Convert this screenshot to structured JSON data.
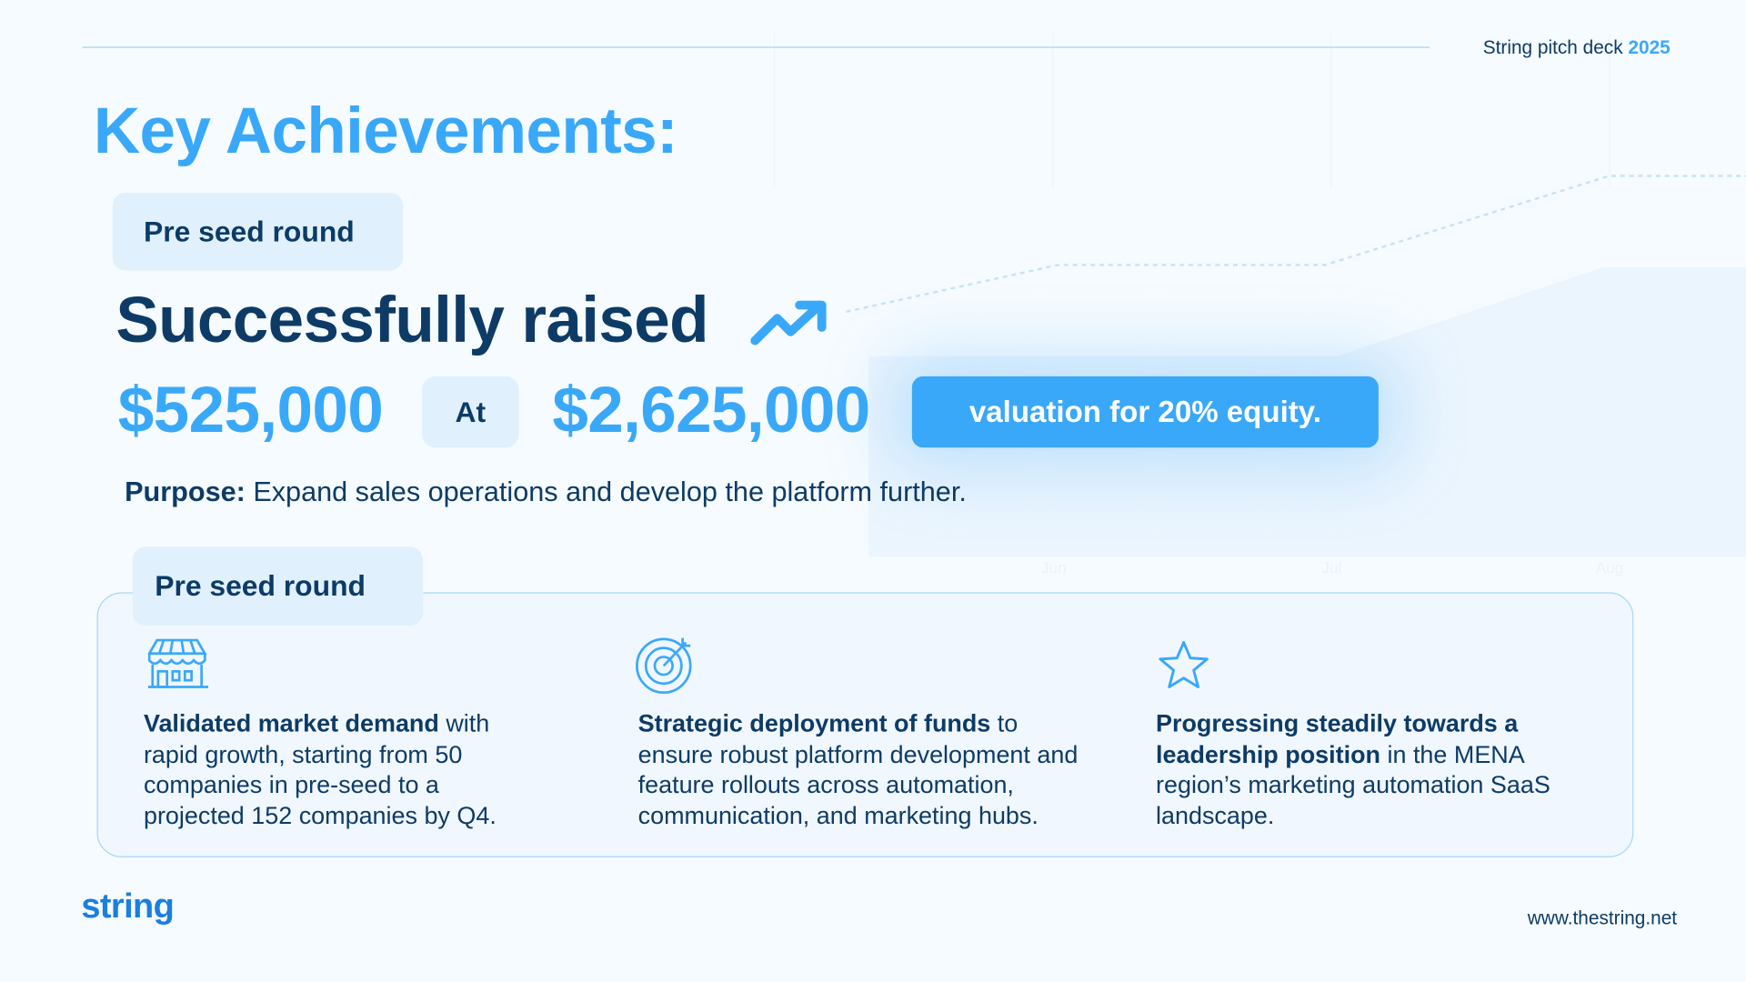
{
  "header": {
    "deck_label": "String pitch deck",
    "deck_year": "2025"
  },
  "title": "Key Achievements:",
  "round_badge": "Pre seed round",
  "headline": "Successfully raised",
  "headline_icon": "trending-up-icon",
  "raise": {
    "amount": "$525,000",
    "at_label": "At",
    "valuation": "$2,625,000",
    "valuation_note": "valuation for 20% equity."
  },
  "purpose": {
    "label": "Purpose:",
    "text": " Expand sales operations and develop the platform further."
  },
  "background_months": [
    "Jun",
    "Jul",
    "Aug"
  ],
  "section_badge": "Pre seed round",
  "features": [
    {
      "icon": "storefront-icon",
      "bold": "Validated market demand",
      "text": " with rapid growth, starting from 50 companies in pre-seed to a projected 152 companies by Q4."
    },
    {
      "icon": "target-icon",
      "bold": "Strategic deployment of funds",
      "text": " to ensure robust platform development and feature rollouts across automation, communication, and marketing hubs."
    },
    {
      "icon": "star-icon",
      "bold": "Progressing steadily towards a leadership position",
      "text": " in the MENA region’s marketing automation SaaS landscape."
    }
  ],
  "footer": {
    "logo": "string",
    "url": "www.thestring.net"
  },
  "colors": {
    "accent": "#3aa8f8",
    "navy": "#0d3b66",
    "pill": "#e0f0fd"
  }
}
